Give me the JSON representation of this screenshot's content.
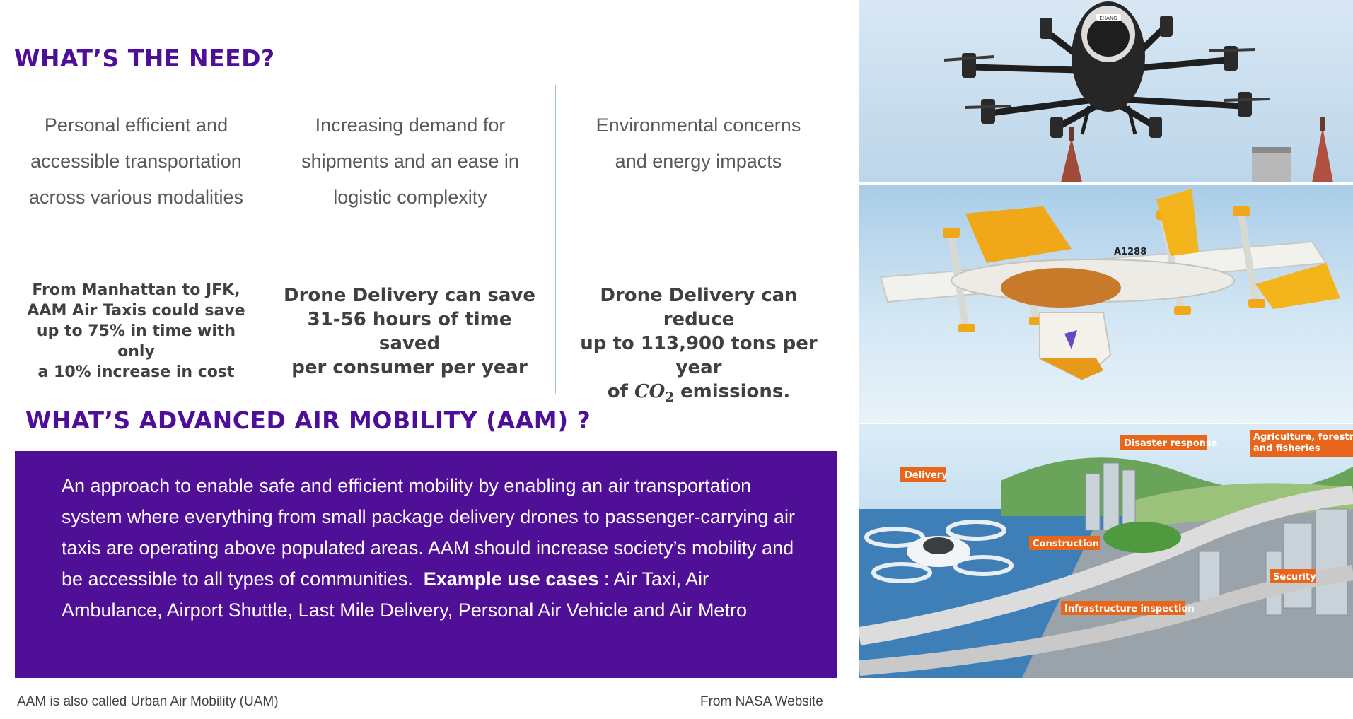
{
  "need_section": {
    "title": "WHAT’S THE NEED?",
    "columns": [
      {
        "need_lines": [
          "Personal efficient and",
          "accessible transportation",
          "across various modalities"
        ],
        "stat_lines": [
          "From Manhattan to JFK,",
          "AAM Air Taxis could save",
          "up to 75% in time with only",
          "a 10% increase in cost"
        ]
      },
      {
        "need_lines": [
          "Increasing demand for",
          "shipments and an ease in",
          "logistic complexity"
        ],
        "stat_lines": [
          "Drone Delivery can save",
          "31-56 hours of time saved",
          "per consumer per year"
        ]
      },
      {
        "need_lines": [
          "Environmental concerns",
          "and energy impacts"
        ],
        "stat_lines": [
          "Drone Delivery can reduce",
          "up to 113,900 tons per year"
        ],
        "stat_last_prefix": "of ",
        "stat_co2_main": "CO",
        "stat_co2_sub": "2",
        "stat_last_suffix": " emissions."
      }
    ]
  },
  "aam_section": {
    "title": "WHAT’S ADVANCED AIR MOBILITY (AAM) ?",
    "description": "An approach to enable safe and efficient mobility by enabling an air transportation system where everything from small package delivery drones to passenger-carrying air taxis are operating above populated areas. AAM should increase society’s mobility and be accessible to all types of communities.",
    "examples_label": "Example use cases",
    "examples": " : Air Taxi, Air Ambulance, Airport Shuttle, Last Mile Delivery, Personal Air Vehicle and Air Metro"
  },
  "footer": {
    "left_note": "AAM is also called Urban Air Mobility (UAM)",
    "right_note": "From NASA Website"
  },
  "images": {
    "photo1": {
      "label": "EHANG"
    },
    "photo2": {
      "label": "A1288"
    },
    "photo3": {
      "labels": {
        "delivery": "Delivery",
        "disaster": "Disaster response",
        "agri_1": "Agriculture, forestry,",
        "agri_2": "and fisheries",
        "construction": "Construction",
        "security": "Security",
        "infrastructure": "Infrastructure inspection"
      }
    }
  },
  "colors": {
    "heading_purple": "#4d0f9a",
    "box_purple": "#4f0f96",
    "divider_blue": "#9fc7dc",
    "label_orange": "#e8651c"
  }
}
